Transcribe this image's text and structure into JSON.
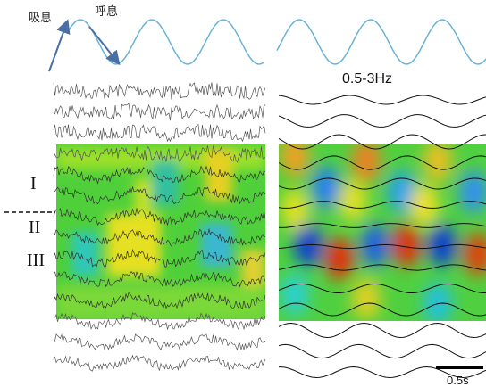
{
  "labels": {
    "inhale": "吸息",
    "exhale": "呼息",
    "band": "0.5-3Hz",
    "region_1": "I",
    "region_2": "II",
    "region_3": "III",
    "scale": "0.5s"
  }
}
